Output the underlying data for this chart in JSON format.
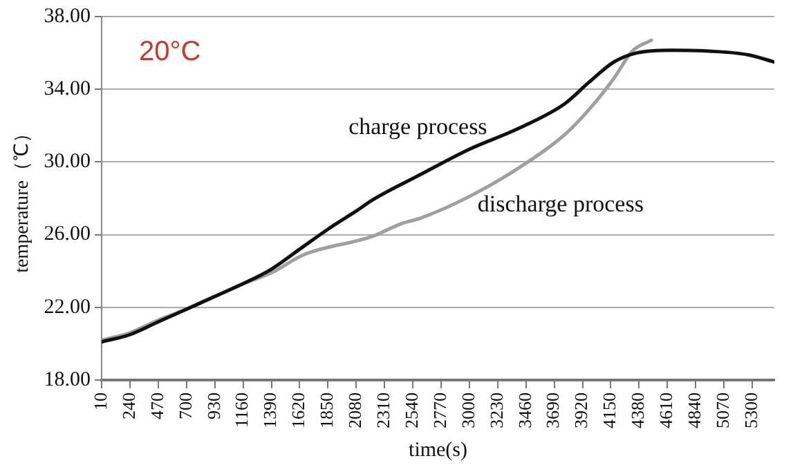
{
  "chart_data": {
    "type": "line",
    "xlabel": "time(s)",
    "ylabel": "temperature（℃）",
    "annotations": [
      "20°C"
    ],
    "xlim": [
      10,
      5480
    ],
    "xticks": [
      10,
      240,
      470,
      700,
      930,
      1160,
      1390,
      1620,
      1850,
      2080,
      2310,
      2540,
      2770,
      3000,
      3230,
      3460,
      3690,
      3920,
      4150,
      4380,
      4610,
      4840,
      5070,
      5300
    ],
    "ylim": [
      18,
      38
    ],
    "yticks": [
      {
        "value": 18,
        "label": "18.00"
      },
      {
        "value": 22,
        "label": "22.00"
      },
      {
        "value": 26,
        "label": "26.00"
      },
      {
        "value": 30,
        "label": "30.00"
      },
      {
        "value": 34,
        "label": "34.00"
      },
      {
        "value": 38,
        "label": "38.00"
      }
    ],
    "grid": "y",
    "legend": false,
    "marker": "none",
    "line_style": "solid",
    "series": [
      {
        "name": "charge process",
        "color": "#111111",
        "x": [
          10,
          240,
          470,
          700,
          930,
          1160,
          1390,
          1620,
          1850,
          2080,
          2210,
          2600,
          3000,
          3385,
          3775,
          3975,
          4175,
          4360,
          4645,
          4950,
          5265,
          5480
        ],
        "values": [
          20.1,
          20.5,
          21.2,
          21.9,
          22.6,
          23.3,
          24.1,
          25.2,
          26.3,
          27.3,
          27.9,
          29.3,
          30.7,
          31.8,
          33.2,
          34.4,
          35.5,
          36.0,
          36.15,
          36.1,
          35.9,
          35.5
        ]
      },
      {
        "name": "discharge process",
        "color": "#a0a0a0",
        "x": [
          10,
          240,
          470,
          700,
          930,
          1160,
          1390,
          1655,
          2210,
          2445,
          2600,
          3000,
          3385,
          3775,
          3975,
          4175,
          4325,
          4480
        ],
        "values": [
          20.2,
          20.6,
          21.3,
          21.9,
          22.6,
          23.3,
          23.9,
          24.9,
          25.9,
          26.6,
          26.9,
          28.1,
          29.6,
          31.5,
          32.9,
          34.6,
          36.1,
          36.7
        ]
      }
    ]
  }
}
